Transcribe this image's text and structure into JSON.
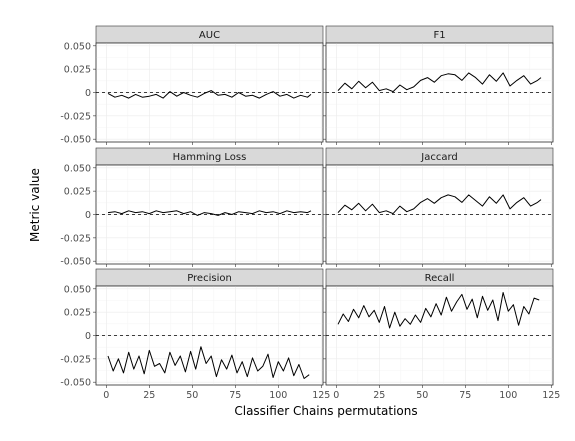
{
  "chart_data": {
    "type": "line",
    "layout": "facet-grid-3x2",
    "xlabel": "Classifier Chains permutations",
    "ylabel": "Metric value",
    "xlim": [
      0,
      120
    ],
    "ylim": [
      -0.05,
      0.05
    ],
    "xticks": [
      "0",
      "25",
      "50",
      "75",
      "100",
      "125"
    ],
    "yticks": [
      "0.050",
      "0.025",
      "0",
      "-0.025",
      "-0.050"
    ],
    "reference_line": 0,
    "grid": true,
    "panels": [
      {
        "title": "AUC",
        "series": [
          {
            "x": [
              1,
              5,
              9,
              13,
              17,
              21,
              25,
              29,
              33,
              37,
              41,
              45,
              49,
              53,
              57,
              61,
              65,
              69,
              73,
              77,
              81,
              85,
              89,
              93,
              97,
              101,
              105,
              109,
              113,
              117,
              119
            ],
            "y": [
              -0.001,
              -0.005,
              -0.003,
              -0.006,
              -0.002,
              -0.005,
              -0.004,
              -0.002,
              -0.006,
              0.001,
              -0.004,
              0,
              -0.003,
              -0.005,
              -0.001,
              0.002,
              -0.003,
              -0.002,
              -0.005,
              0,
              -0.004,
              -0.003,
              -0.006,
              -0.002,
              0.001,
              -0.004,
              -0.002,
              -0.006,
              -0.003,
              -0.005,
              -0.002
            ]
          }
        ]
      },
      {
        "title": "F1",
        "series": [
          {
            "x": [
              1,
              5,
              9,
              13,
              17,
              21,
              25,
              29,
              33,
              37,
              41,
              45,
              49,
              53,
              57,
              61,
              65,
              69,
              73,
              77,
              81,
              85,
              89,
              93,
              97,
              101,
              105,
              109,
              113,
              117,
              119
            ],
            "y": [
              0.002,
              0.01,
              0.004,
              0.012,
              0.005,
              0.011,
              0.002,
              0.004,
              0.001,
              0.008,
              0.003,
              0.006,
              0.013,
              0.016,
              0.011,
              0.018,
              0.02,
              0.019,
              0.013,
              0.021,
              0.016,
              0.009,
              0.019,
              0.012,
              0.021,
              0.007,
              0.013,
              0.018,
              0.009,
              0.013,
              0.016
            ]
          }
        ]
      },
      {
        "title": "Hamming Loss",
        "series": [
          {
            "x": [
              1,
              5,
              9,
              13,
              17,
              21,
              25,
              29,
              33,
              37,
              41,
              45,
              49,
              53,
              57,
              61,
              65,
              69,
              73,
              77,
              81,
              85,
              89,
              93,
              97,
              101,
              105,
              109,
              113,
              117,
              119
            ],
            "y": [
              0.002,
              0.003,
              0.001,
              0.004,
              0.002,
              0.003,
              0.001,
              0.004,
              0.002,
              0.003,
              0.004,
              0.001,
              0.003,
              -0.001,
              0.002,
              0.001,
              -0.001,
              0.002,
              0,
              0.003,
              0.002,
              0.001,
              0.004,
              0.002,
              0.003,
              0.001,
              0.004,
              0.002,
              0.003,
              0.002,
              0.004
            ]
          }
        ]
      },
      {
        "title": "Jaccard",
        "series": [
          {
            "x": [
              1,
              5,
              9,
              13,
              17,
              21,
              25,
              29,
              33,
              37,
              41,
              45,
              49,
              53,
              57,
              61,
              65,
              69,
              73,
              77,
              81,
              85,
              89,
              93,
              97,
              101,
              105,
              109,
              113,
              117,
              119
            ],
            "y": [
              0.002,
              0.01,
              0.005,
              0.012,
              0.004,
              0.011,
              0.002,
              0.004,
              0.001,
              0.009,
              0.003,
              0.006,
              0.013,
              0.017,
              0.012,
              0.018,
              0.021,
              0.019,
              0.013,
              0.021,
              0.015,
              0.009,
              0.019,
              0.012,
              0.021,
              0.006,
              0.013,
              0.018,
              0.009,
              0.013,
              0.016
            ]
          }
        ]
      },
      {
        "title": "Precision",
        "series": [
          {
            "x": [
              1,
              4,
              7,
              10,
              13,
              16,
              19,
              22,
              25,
              28,
              31,
              34,
              37,
              40,
              43,
              46,
              49,
              52,
              55,
              58,
              61,
              64,
              67,
              70,
              73,
              76,
              79,
              82,
              85,
              88,
              91,
              94,
              97,
              100,
              103,
              106,
              109,
              112,
              115,
              118
            ],
            "y": [
              -0.022,
              -0.038,
              -0.025,
              -0.04,
              -0.018,
              -0.036,
              -0.022,
              -0.041,
              -0.016,
              -0.033,
              -0.03,
              -0.04,
              -0.018,
              -0.032,
              -0.022,
              -0.039,
              -0.017,
              -0.036,
              -0.012,
              -0.03,
              -0.022,
              -0.044,
              -0.026,
              -0.036,
              -0.021,
              -0.04,
              -0.028,
              -0.044,
              -0.024,
              -0.038,
              -0.033,
              -0.02,
              -0.045,
              -0.028,
              -0.038,
              -0.024,
              -0.043,
              -0.031,
              -0.046,
              -0.042
            ]
          }
        ]
      },
      {
        "title": "Recall",
        "series": [
          {
            "x": [
              1,
              4,
              7,
              10,
              13,
              16,
              19,
              22,
              25,
              28,
              31,
              34,
              37,
              40,
              43,
              46,
              49,
              52,
              55,
              58,
              61,
              64,
              67,
              70,
              73,
              76,
              79,
              82,
              85,
              88,
              91,
              94,
              97,
              100,
              103,
              106,
              109,
              112,
              115,
              118
            ],
            "y": [
              0.012,
              0.023,
              0.015,
              0.028,
              0.019,
              0.032,
              0.02,
              0.027,
              0.014,
              0.031,
              0.008,
              0.025,
              0.01,
              0.018,
              0.012,
              0.022,
              0.014,
              0.029,
              0.02,
              0.034,
              0.022,
              0.041,
              0.026,
              0.036,
              0.044,
              0.028,
              0.039,
              0.019,
              0.042,
              0.027,
              0.038,
              0.016,
              0.046,
              0.026,
              0.033,
              0.011,
              0.031,
              0.023,
              0.04,
              0.038
            ]
          }
        ]
      }
    ]
  }
}
